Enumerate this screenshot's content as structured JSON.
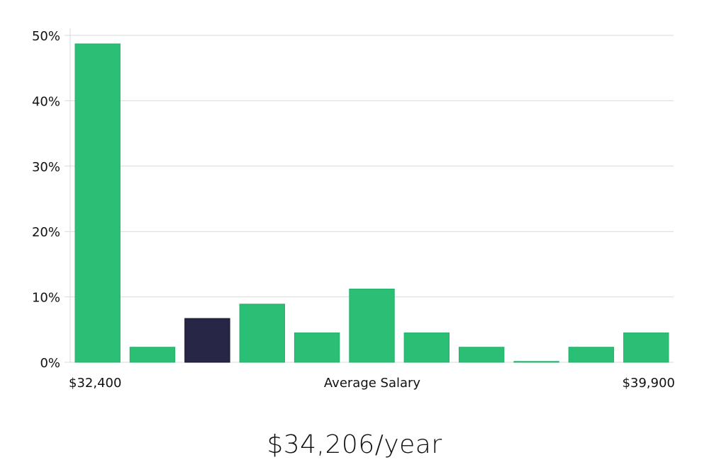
{
  "chart_data": {
    "type": "bar",
    "title": "",
    "xlabel": "Average Salary",
    "ylabel": "",
    "ylim": [
      0,
      50
    ],
    "y_ticks": [
      {
        "value": 0,
        "label": "0%"
      },
      {
        "value": 10,
        "label": "10%"
      },
      {
        "value": 20,
        "label": "20%"
      },
      {
        "value": 30,
        "label": "30%"
      },
      {
        "value": 40,
        "label": "40%"
      },
      {
        "value": 50,
        "label": "50%"
      }
    ],
    "x_range_labels": {
      "min": "$32,400",
      "max": "$39,900"
    },
    "values": [
      48.7,
      2.3,
      6.7,
      8.9,
      4.5,
      11.2,
      4.5,
      2.3,
      0.1,
      2.3,
      4.5
    ],
    "highlight_index": 2,
    "grid": true,
    "colors": {
      "bar": "#2bbf76",
      "highlight": "#282646",
      "grid": "#d9d9d9"
    }
  },
  "summary": {
    "salary_text": "$34,206/year"
  }
}
